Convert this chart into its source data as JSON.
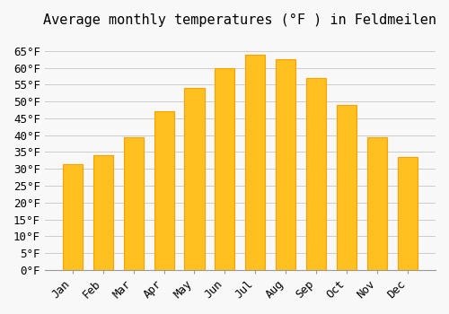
{
  "title": "Average monthly temperatures (°F ) in Feldmeilen",
  "months": [
    "Jan",
    "Feb",
    "Mar",
    "Apr",
    "May",
    "Jun",
    "Jul",
    "Aug",
    "Sep",
    "Oct",
    "Nov",
    "Dec"
  ],
  "values": [
    31.5,
    34.0,
    39.5,
    47.0,
    54.0,
    60.0,
    64.0,
    62.5,
    57.0,
    49.0,
    39.5,
    33.5
  ],
  "bar_color_face": "#FFC020",
  "bar_color_edge": "#FFA000",
  "background_color": "#F8F8F8",
  "grid_color": "#CCCCCC",
  "ylim": [
    0,
    70
  ],
  "yticks": [
    0,
    5,
    10,
    15,
    20,
    25,
    30,
    35,
    40,
    45,
    50,
    55,
    60,
    65
  ],
  "ylabel_suffix": "°F",
  "title_fontsize": 11,
  "tick_fontsize": 9,
  "font_family": "monospace"
}
